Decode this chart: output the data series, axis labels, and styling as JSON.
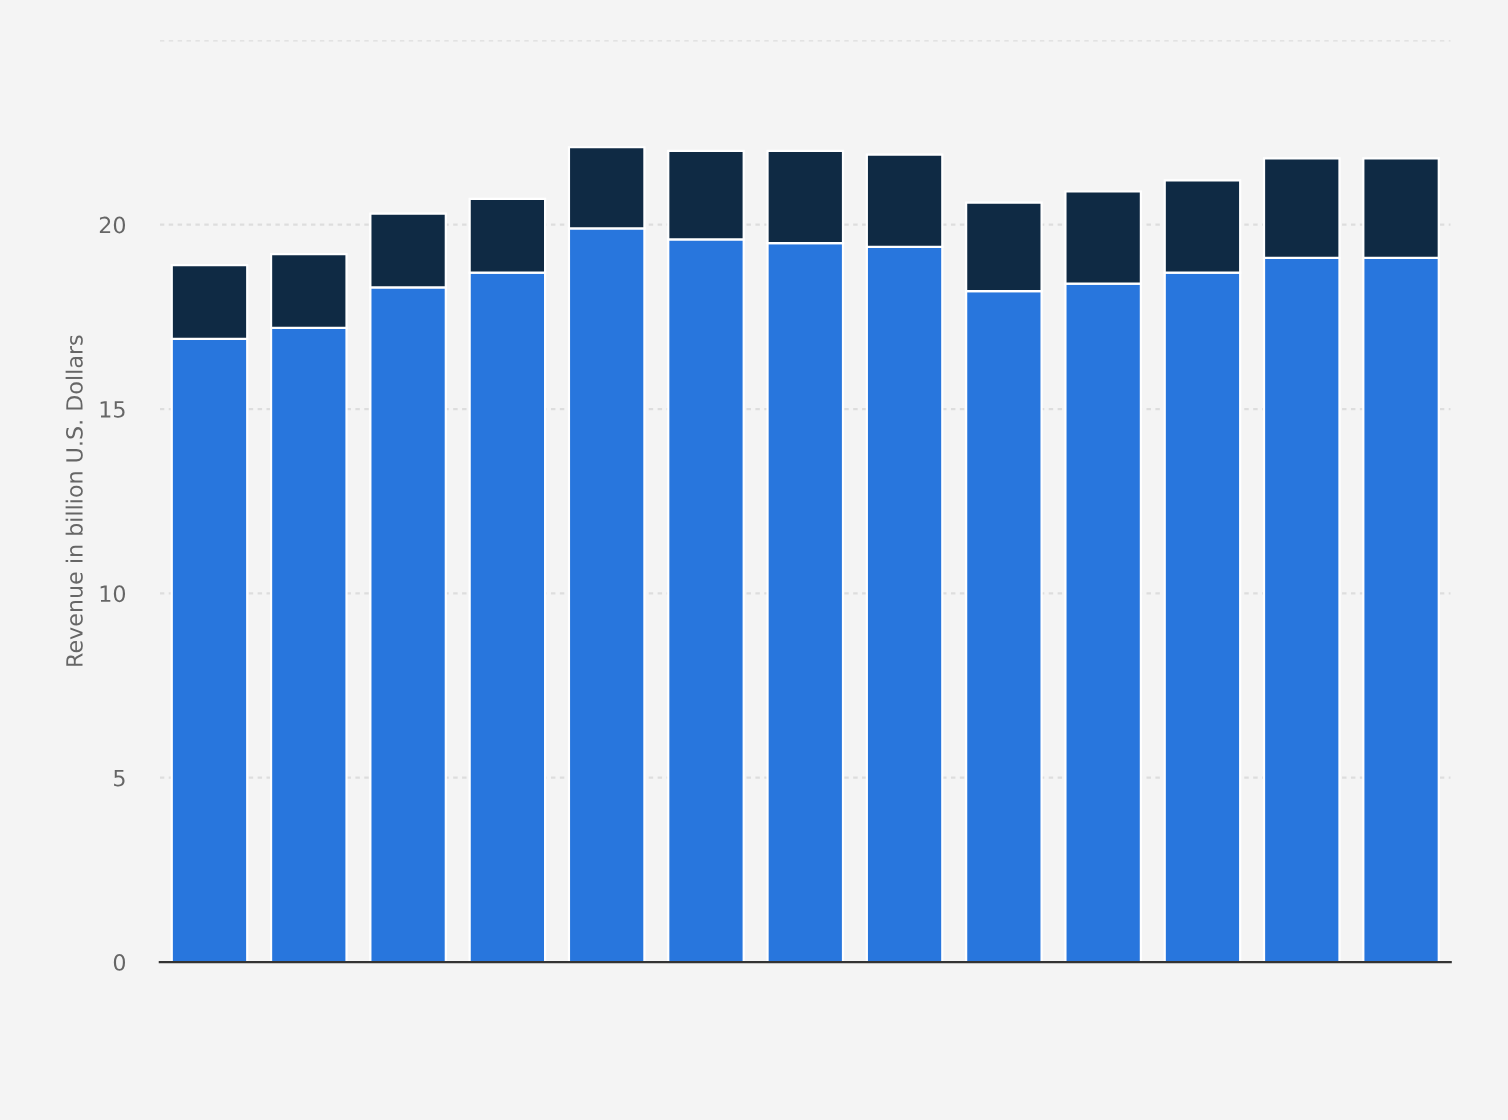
{
  "chart_data": {
    "type": "bar",
    "stacked": true,
    "ylabel": "Revenue in billion U.S. Dollars",
    "categories": [
      null,
      null,
      null,
      null,
      null,
      null,
      null,
      null,
      null,
      null,
      null,
      null,
      null
    ],
    "series": [
      {
        "color": "#2876dd",
        "values": [
          16.9,
          17.2,
          18.3,
          18.7,
          19.9,
          19.6,
          19.5,
          19.4,
          18.2,
          18.4,
          18.7,
          19.1,
          19.1
        ]
      },
      {
        "color": "#0f2a44",
        "values": [
          2.0,
          2.0,
          2.0,
          2.0,
          2.2,
          2.4,
          2.5,
          2.5,
          2.4,
          2.5,
          2.5,
          2.7,
          2.7
        ]
      }
    ],
    "ylim": [
      0,
      25
    ],
    "yticks": [
      0,
      5,
      10,
      15,
      20,
      {
        "value": 25,
        "label": null
      }
    ],
    "grid": "y"
  }
}
